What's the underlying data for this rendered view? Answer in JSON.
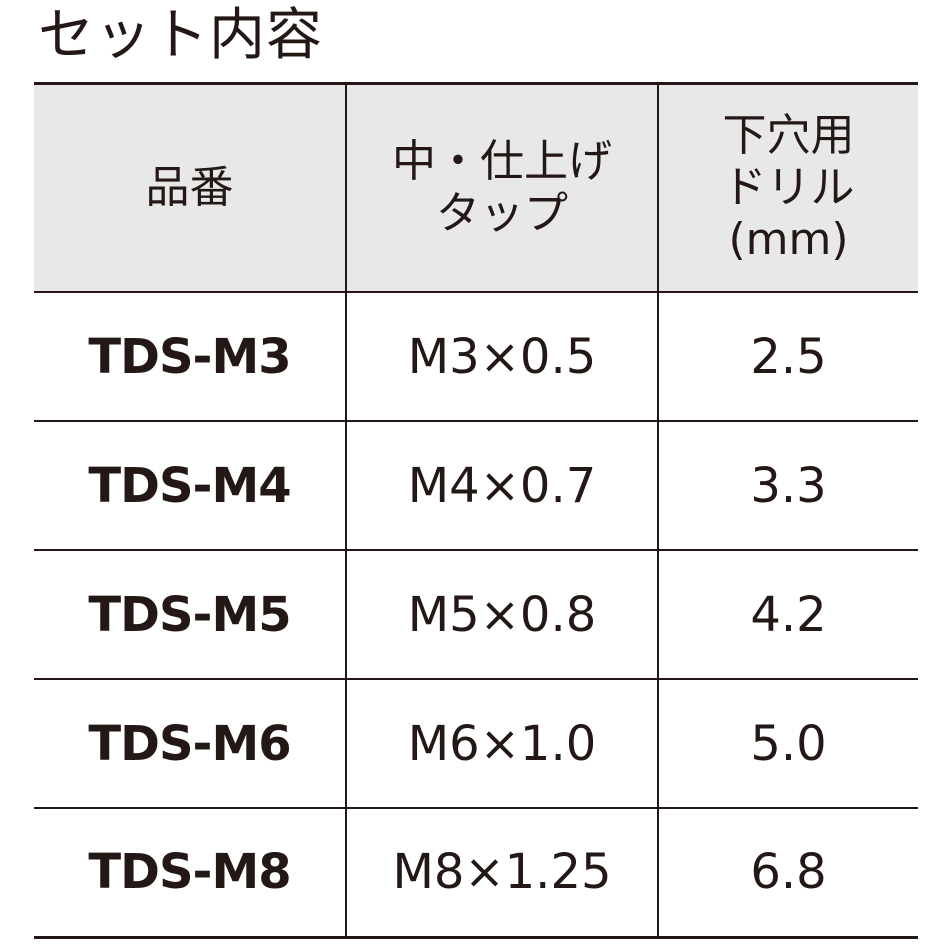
{
  "title": "セット内容",
  "table": {
    "headers": {
      "part_no": "品番",
      "tap": [
        "中・仕上げ",
        "タップ"
      ],
      "drill": [
        "下穴用",
        "ドリル",
        "(mm)"
      ]
    },
    "rows": [
      {
        "part_no": "TDS-M3",
        "tap": "M3×0.5",
        "drill": "2.5"
      },
      {
        "part_no": "TDS-M4",
        "tap": "M4×0.7",
        "drill": "3.3"
      },
      {
        "part_no": "TDS-M5",
        "tap": "M5×0.8",
        "drill": "4.2"
      },
      {
        "part_no": "TDS-M6",
        "tap": "M6×1.0",
        "drill": "5.0"
      },
      {
        "part_no": "TDS-M8",
        "tap": "M8×1.25",
        "drill": "6.8"
      }
    ]
  }
}
